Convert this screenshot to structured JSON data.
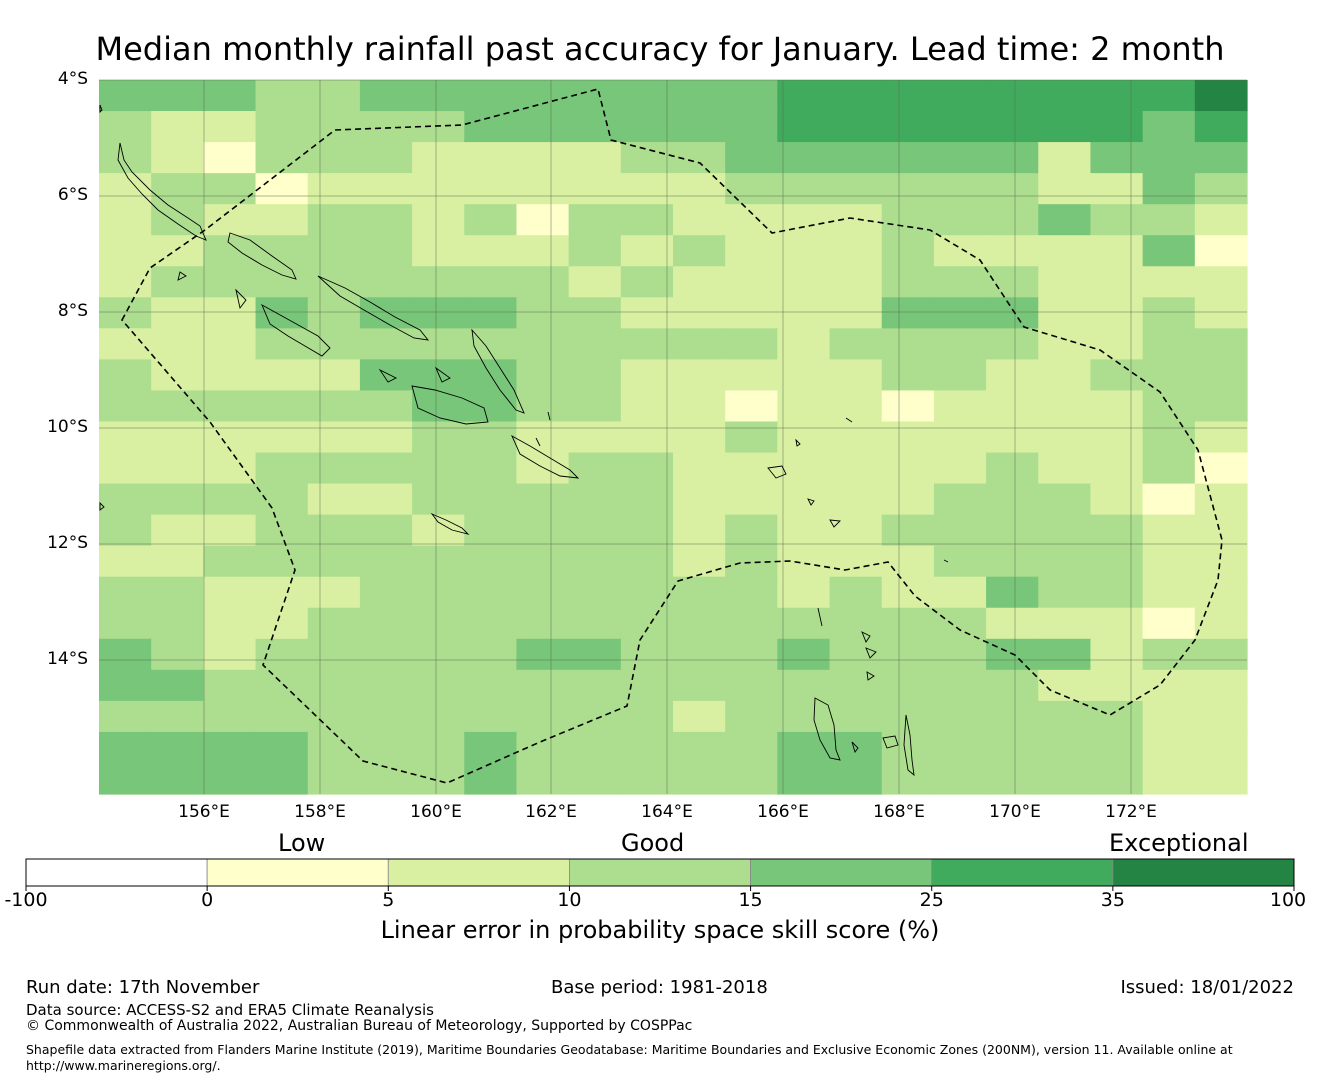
{
  "title": "Median monthly rainfall past accuracy for January. Lead time: 2 month",
  "map": {
    "lat_range": [
      "4°S",
      "16°S"
    ],
    "lon_range": [
      "154.2°E",
      "174°E"
    ],
    "lat_ticks": [
      "4°S",
      "6°S",
      "8°S",
      "10°S",
      "12°S",
      "14°S"
    ],
    "lon_ticks": [
      "156°E",
      "158°E",
      "160°E",
      "162°E",
      "164°E",
      "166°E",
      "168°E",
      "170°E",
      "172°E"
    ],
    "grid_resolution_deg": "0.83 x 0.55 approx",
    "skill_grid_classes": [
      "4443344444444555555556",
      "3223333444444555555545",
      "3213332222334444442444",
      "2331222222223333332243",
      "2322332313322223334332",
      "2233332223232223222241",
      "2333333332322223332222",
      "3224344433222224442232",
      "2223333333333233332233",
      "3222244433222223322333",
      "3333334433221221222233",
      "2222223322223222222232",
      "2223333323322222232231",
      "3333223333322222333212",
      "3223332333323223333322",
      "2233333333323222333322",
      "3322233333333232243322",
      "3322333333333333322212",
      "4323333344333433344233",
      "4433333333333333332222",
      "3333333333323333333322",
      "4444333433333443333322",
      "4444333433333443333322"
    ],
    "notes": "class index into colorbar.colors: 0 white, 1 lightest yellow ... 6 darkest green",
    "eez_boundary": "dashed line"
  },
  "colorbar": {
    "ticks": [
      "-100",
      "0",
      "5",
      "10",
      "15",
      "25",
      "35",
      "100"
    ],
    "colors": [
      "#ffffff",
      "#ffffcc",
      "#d9f0a3",
      "#addd8e",
      "#78c679",
      "#41ab5d",
      "#238443"
    ],
    "categories": [
      "Low",
      "Good",
      "Exceptional"
    ],
    "label": "Linear error in probability space skill score (%)"
  },
  "footer": {
    "run_date": "Run date: 17th November",
    "base_period": "Base period: 1981-2018",
    "issued": "Issued: 18/01/2022",
    "data_source": "Data source: ACCESS-S2 and ERA5 Climate Reanalysis",
    "copyright": "© Commonwealth of Australia 2022, Australian Bureau of Meteorology, Supported by COSPPac",
    "shapefile_line1": "Shapefile data extracted from Flanders Marine Institute (2019), Maritime Boundaries Geodatabase: Maritime Boundaries and Exclusive Economic Zones (200NM), version 11. Available online at",
    "shapefile_line2": "http://www.marineregions.org/."
  }
}
